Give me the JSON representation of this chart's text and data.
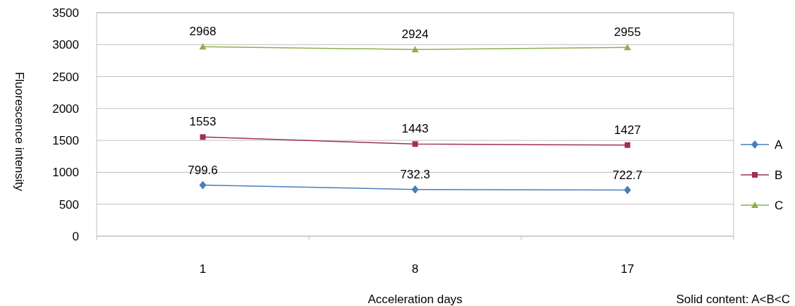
{
  "chart_data": {
    "type": "line",
    "xlabel": "Acceleration days",
    "ylabel": "Fluorescence intensity",
    "categories": [
      "1",
      "8",
      "17"
    ],
    "series": [
      {
        "name": "A",
        "color": "#4a7ebb",
        "marker": "diamond",
        "values": [
          799.6,
          732.3,
          722.7
        ]
      },
      {
        "name": "B",
        "color": "#a03050",
        "marker": "square",
        "values": [
          1553,
          1443,
          1427
        ]
      },
      {
        "name": "C",
        "color": "#8db04a",
        "marker": "triangle",
        "values": [
          2968,
          2924,
          2955
        ]
      }
    ],
    "ylim": [
      0,
      3500
    ],
    "yticks": [
      0,
      500,
      1000,
      1500,
      2000,
      2500,
      3000,
      3500
    ],
    "grid": "y",
    "legend": "right",
    "data_labels": true,
    "line_style": "solid",
    "annotations": [
      "Solid content: A<B<C"
    ]
  }
}
